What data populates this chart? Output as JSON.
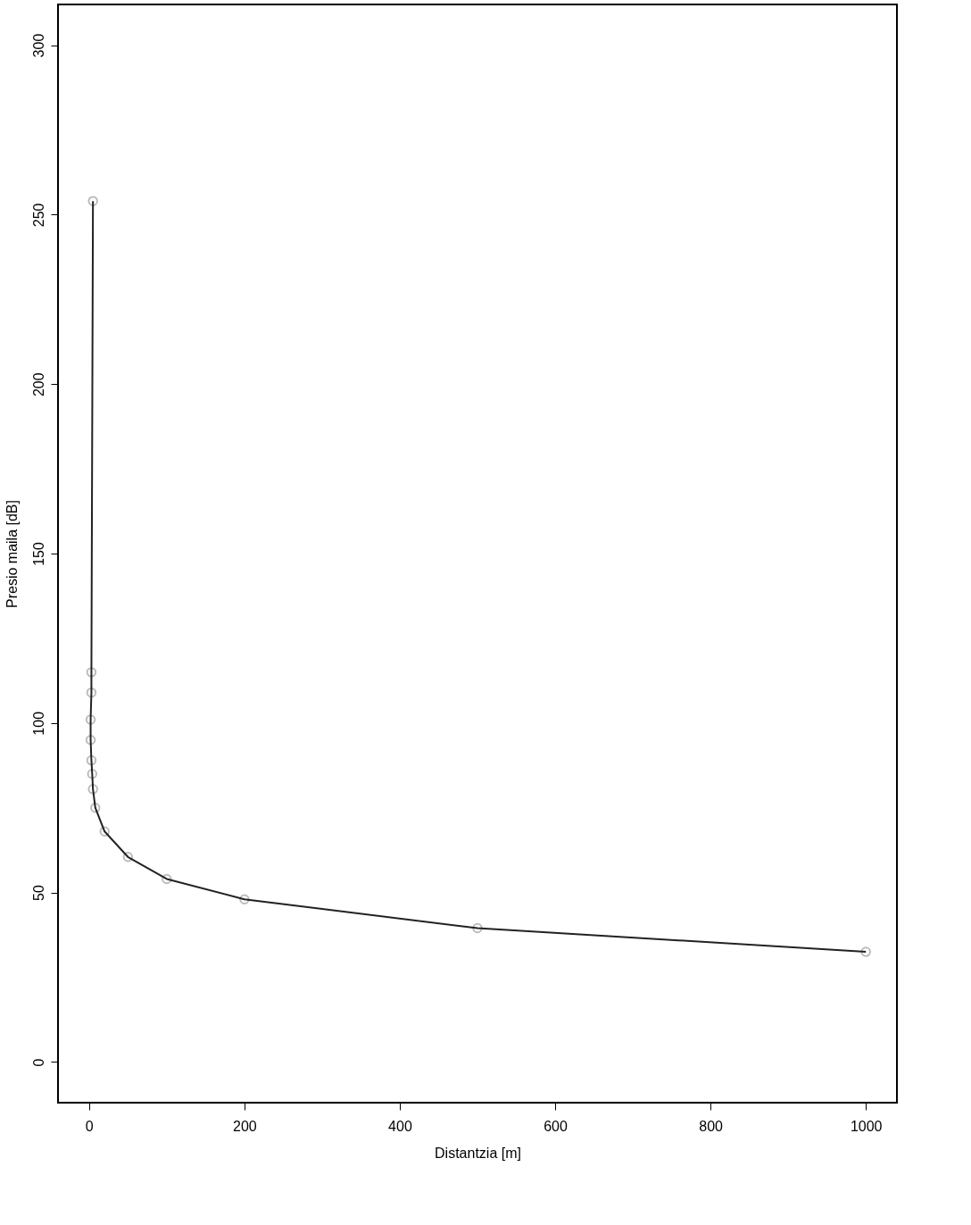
{
  "chart_data": {
    "type": "line",
    "xlabel": "Distantzia [m]",
    "ylabel": "Presio maila [dB]",
    "series": [
      {
        "color": "#222222",
        "x": [
          5,
          3,
          3,
          2,
          2,
          3,
          4,
          5,
          8,
          20,
          50,
          100,
          200,
          500,
          1000
        ],
        "values": [
          254,
          115,
          109,
          101,
          95,
          89,
          85,
          80.5,
          75,
          68,
          60.5,
          54,
          48,
          39.5,
          32.5
        ]
      }
    ],
    "xlim": [
      -40,
      1040
    ],
    "ylim": [
      -12,
      312
    ],
    "xticks": [
      0,
      200,
      400,
      600,
      800,
      1000
    ],
    "yticks": [
      0,
      50,
      100,
      150,
      200,
      250,
      300
    ],
    "grid": false,
    "marker": "circle",
    "line_style": "solid"
  }
}
